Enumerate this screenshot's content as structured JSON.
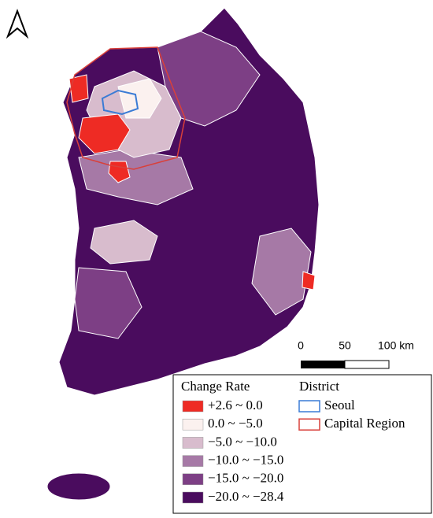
{
  "legend": {
    "title": "Change Rate",
    "classes": [
      {
        "label": "+2.6 ~ 0.0",
        "color": "#ee2b24"
      },
      {
        "label": "0.0 ~ −5.0",
        "color": "#fbf1ef"
      },
      {
        "label": "−5.0 ~ −10.0",
        "color": "#d8bccd"
      },
      {
        "label": "−10.0 ~ −15.0",
        "color": "#a679a6"
      },
      {
        "label": "−15.0 ~ −20.0",
        "color": "#7d3f85"
      },
      {
        "label": "−20.0 ~ −28.4",
        "color": "#4a0c5e"
      }
    ],
    "district_title": "District",
    "districts": [
      {
        "label": "Seoul",
        "color": "#3a7bd5"
      },
      {
        "label": "Capital Region",
        "color": "#d9403a"
      }
    ]
  },
  "scale_bar": {
    "labels": [
      "0",
      "50",
      "100 km"
    ]
  }
}
